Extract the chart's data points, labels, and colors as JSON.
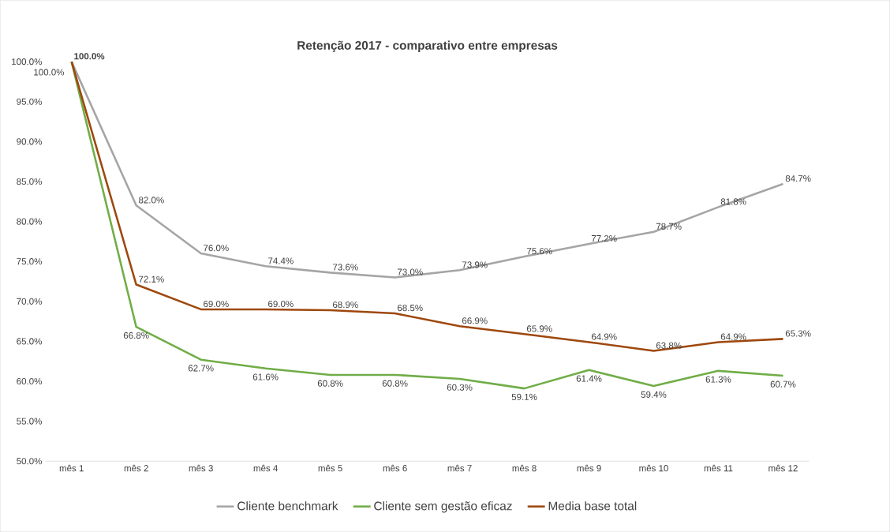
{
  "chart_data": {
    "type": "line",
    "title": "Retenção 2017 - comparativo entre empresas",
    "categories": [
      "mês 1",
      "mês 2",
      "mês 3",
      "mês 4",
      "mês 5",
      "mês 6",
      "mês 7",
      "mês 8",
      "mês 9",
      "mês 10",
      "mês 11",
      "mês 12"
    ],
    "series": [
      {
        "name": "Cliente benchmark",
        "color": "#a5a5a5",
        "values": [
          100,
          82,
          76,
          74.4,
          73.6,
          73,
          73.9,
          75.6,
          77.2,
          78.7,
          81.8,
          84.7
        ],
        "value_labels": [
          "100.0%",
          "82.0%",
          "76.0%",
          "74.4%",
          "73.6%",
          "73.0%",
          "73.9%",
          "75.6%",
          "77.2%",
          "78.7%",
          "81.8%",
          "84.7%"
        ]
      },
      {
        "name": "Cliente sem gestão eficaz",
        "color": "#70ad47",
        "values": [
          100,
          66.8,
          62.7,
          61.6,
          60.8,
          60.8,
          60.3,
          59.1,
          61.4,
          59.4,
          61.3,
          60.7
        ],
        "value_labels": [
          null,
          "66.8%",
          "62.7%",
          "61.6%",
          "60.8%",
          "60.8%",
          "60.3%",
          "59.1%",
          "61.4%",
          "59.4%",
          "61.3%",
          "60.7%"
        ]
      },
      {
        "name": "Media base total",
        "color": "#9e480e",
        "values": [
          100,
          72.1,
          69,
          69,
          68.9,
          68.5,
          66.9,
          65.9,
          64.9,
          63.8,
          64.9,
          65.3
        ],
        "value_labels": [
          "100.0%",
          "72.1%",
          "69.0%",
          "69.0%",
          "68.9%",
          "68.5%",
          "66.9%",
          "65.9%",
          "64.9%",
          "63.8%",
          "64.9%",
          "65.3%"
        ]
      }
    ],
    "ylim": [
      50,
      100
    ],
    "yticks": [
      {
        "value": 50,
        "label": "50.0%"
      },
      {
        "value": 55,
        "label": "55.0%"
      },
      {
        "value": 60,
        "label": "60.0%"
      },
      {
        "value": 65,
        "label": "65.0%"
      },
      {
        "value": 70,
        "label": "70.0%"
      },
      {
        "value": 75,
        "label": "75.0%"
      },
      {
        "value": 80,
        "label": "80.0%"
      },
      {
        "value": 85,
        "label": "85.0%"
      },
      {
        "value": 90,
        "label": "90.0%"
      },
      {
        "value": 95,
        "label": "95.0%"
      },
      {
        "value": 100,
        "label": "100.0%"
      }
    ],
    "legend": "bottom",
    "marker": "none",
    "line_style": "solid"
  }
}
